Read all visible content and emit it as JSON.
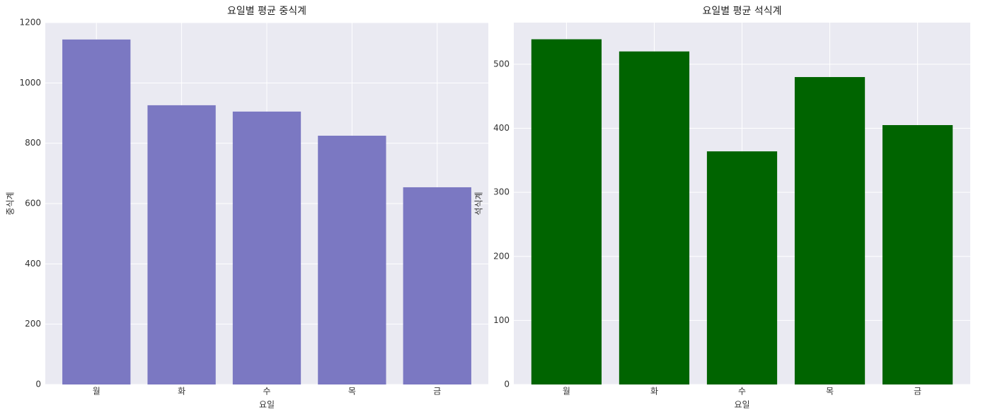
{
  "chart_data": [
    {
      "type": "bar",
      "title": "요일별 평균 중식계",
      "x_label": "요일",
      "y_label": "중식계",
      "categories": [
        "월",
        "화",
        "수",
        "목",
        "금"
      ],
      "values": [
        1144,
        926,
        905,
        825,
        654
      ],
      "color": "#7b78c2",
      "ylim": [
        0,
        1200
      ],
      "yticks": [
        0,
        200,
        400,
        600,
        800,
        1000,
        1200
      ],
      "grid": true
    },
    {
      "type": "bar",
      "title": "요일별 평균 석식계",
      "x_label": "요일",
      "y_label": "석식계",
      "categories": [
        "월",
        "화",
        "수",
        "목",
        "금"
      ],
      "values": [
        539,
        520,
        364,
        480,
        405
      ],
      "color": "#006400",
      "ylim": [
        0,
        565
      ],
      "yticks": [
        0,
        100,
        200,
        300,
        400,
        500
      ],
      "grid": true
    }
  ]
}
